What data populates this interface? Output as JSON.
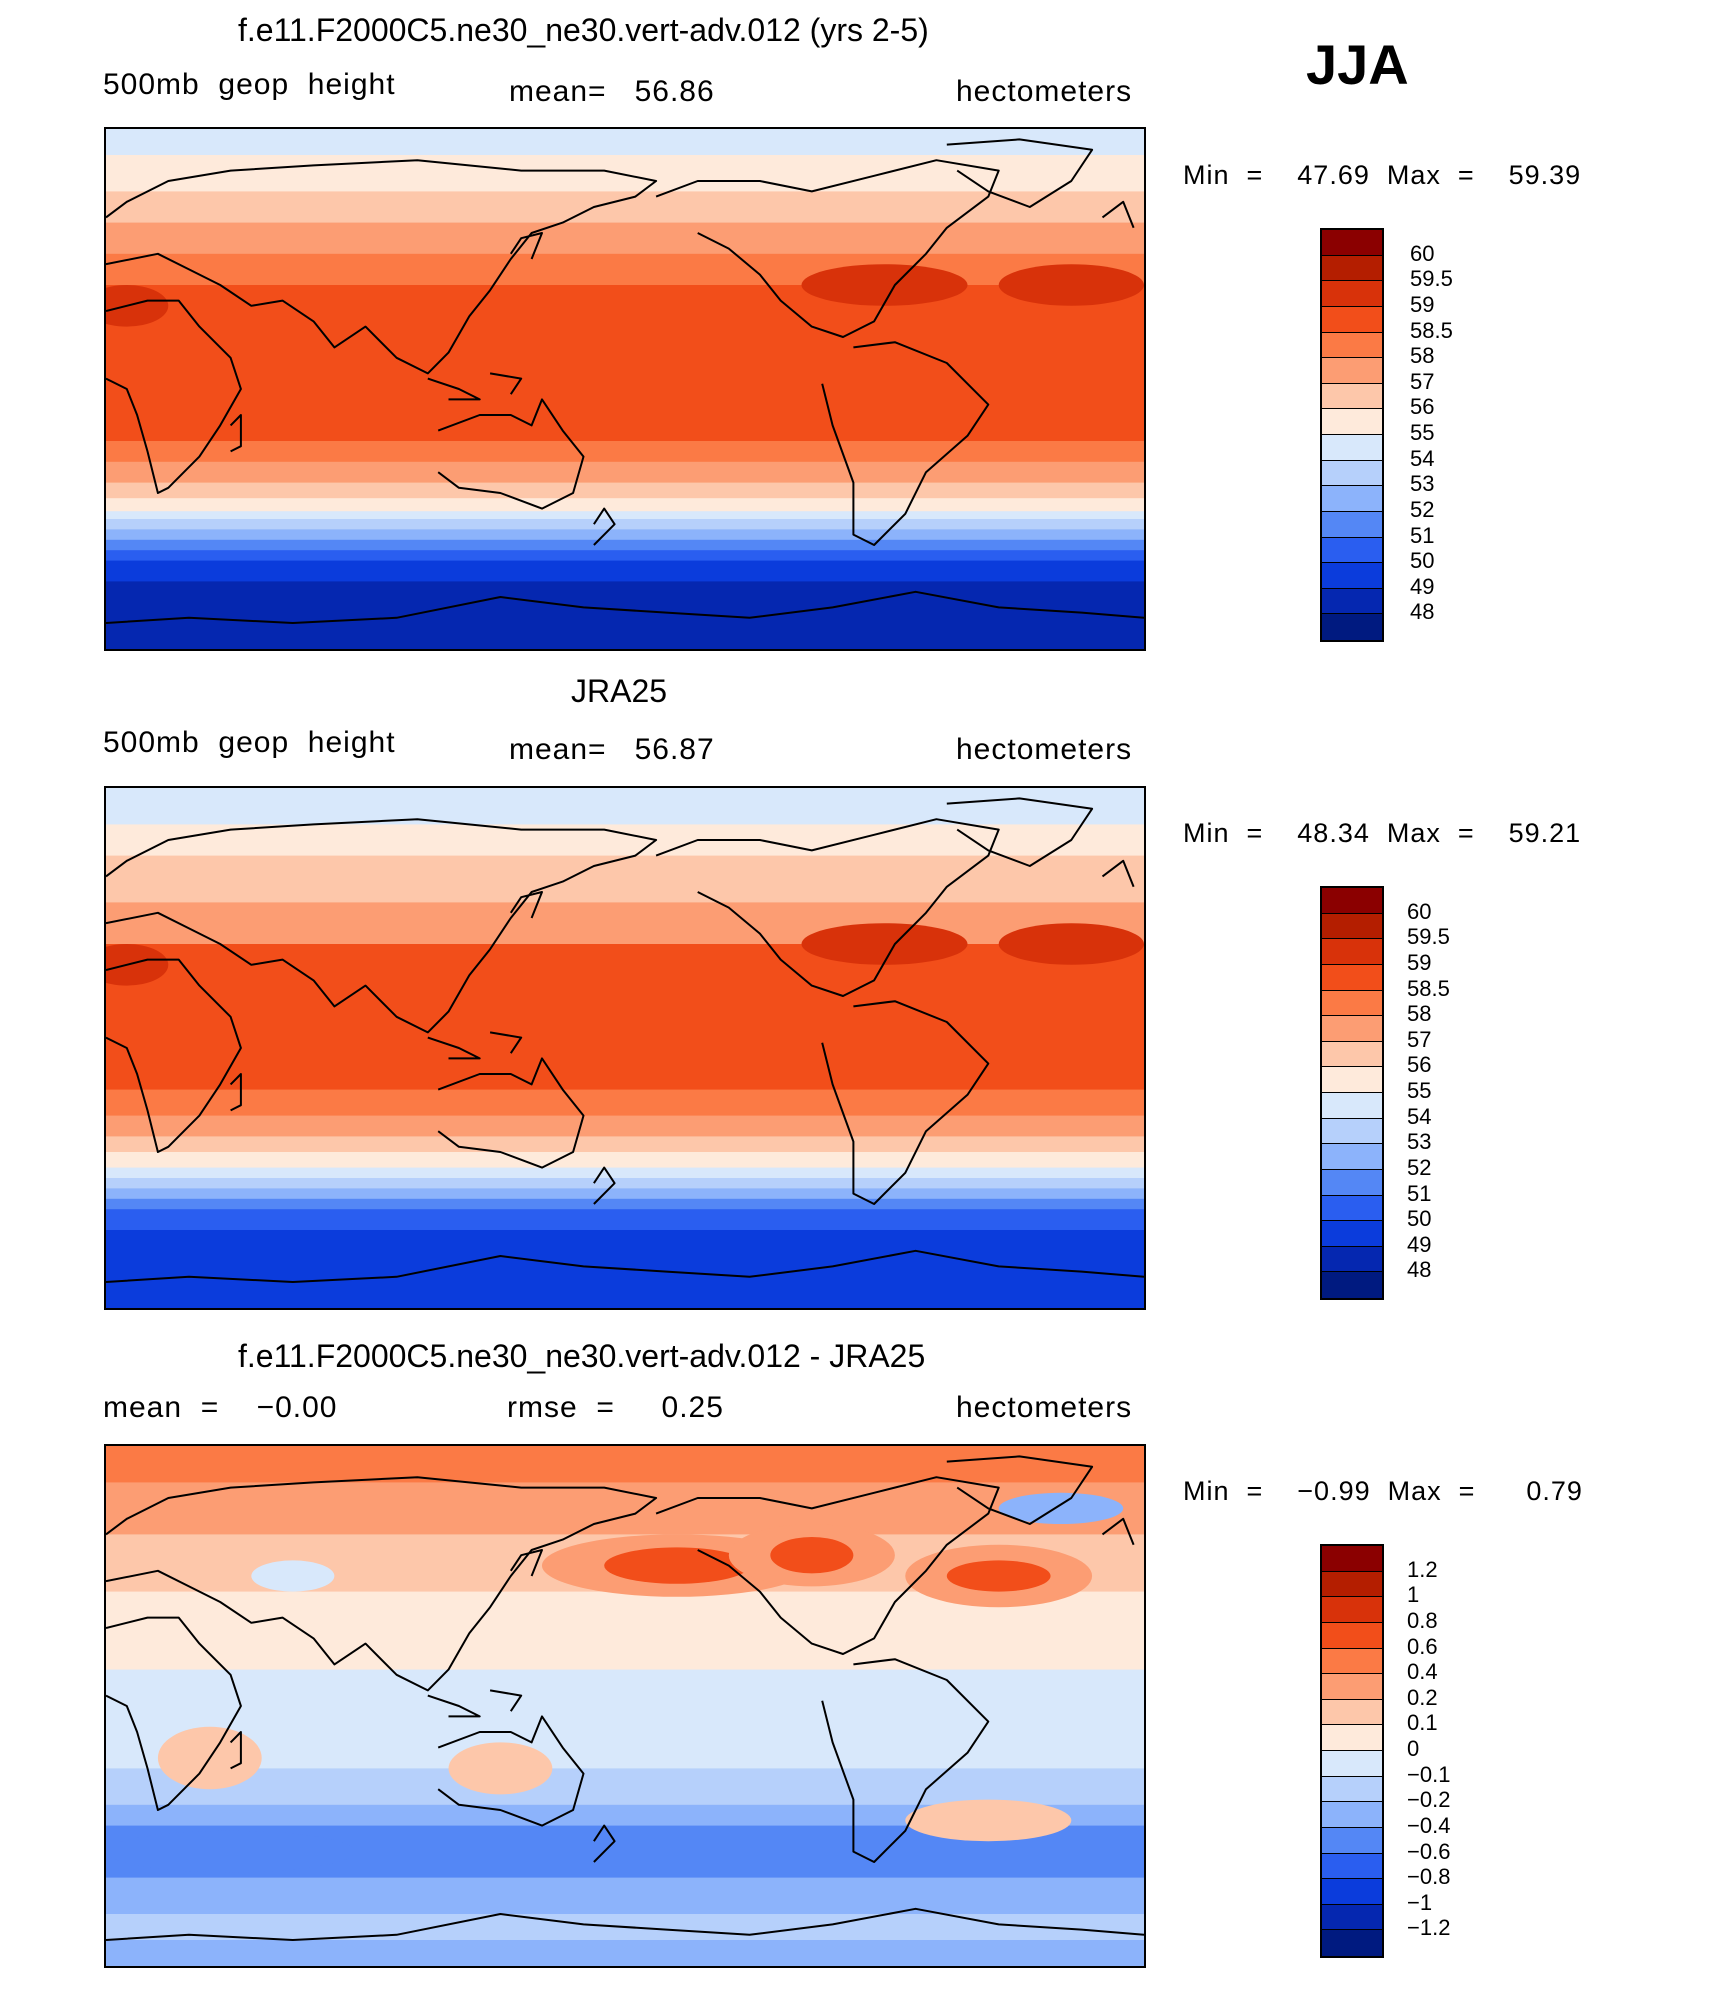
{
  "figure": {
    "season": "JJA"
  },
  "chart_data": [
    {
      "type": "heatmap",
      "title": "f.e11.F2000C5.ne30_ne30.vert-adv.012 (yrs 2-5)",
      "left_label": "500mb  geop  height",
      "center_label": "mean=   56.86",
      "right_label": "hectometers",
      "min_label": "Min  =    47.69  Max  =    59.39",
      "min": 47.69,
      "max": 59.39,
      "mean": 56.86,
      "levels": [
        "60",
        "59.5",
        "59",
        "58.5",
        "58",
        "57",
        "56",
        "55",
        "54",
        "53",
        "52",
        "51",
        "50",
        "49",
        "48"
      ],
      "colors": [
        "#8b0000",
        "#b41e00",
        "#d8320a",
        "#f24e1a",
        "#fb7a45",
        "#fc9d73",
        "#fdc7aa",
        "#feeadb",
        "#d8e8fb",
        "#b6d0fb",
        "#8cb3fb",
        "#5487f5",
        "#2a5ef0",
        "#0b3cdc",
        "#0527b0",
        "#001a80"
      ],
      "zonal_bands": [
        [
          0.0,
          "#d8e8fb"
        ],
        [
          0.05,
          "#feeadb"
        ],
        [
          0.12,
          "#fdc7aa"
        ],
        [
          0.18,
          "#fc9d73"
        ],
        [
          0.24,
          "#fb7a45"
        ],
        [
          0.3,
          "#f24e1a"
        ],
        [
          0.6,
          "#fb7a45"
        ],
        [
          0.64,
          "#fc9d73"
        ],
        [
          0.68,
          "#fdc7aa"
        ],
        [
          0.71,
          "#feeadb"
        ],
        [
          0.735,
          "#d8e8fb"
        ],
        [
          0.75,
          "#b6d0fb"
        ],
        [
          0.77,
          "#8cb3fb"
        ],
        [
          0.79,
          "#5487f5"
        ],
        [
          0.81,
          "#2a5ef0"
        ],
        [
          0.83,
          "#0b3cdc"
        ],
        [
          0.87,
          "#0527b0"
        ],
        [
          1.0,
          "#0527b0"
        ]
      ]
    },
    {
      "type": "heatmap",
      "title": "JRA25",
      "left_label": "500mb  geop  height",
      "center_label": "mean=   56.87",
      "right_label": "hectometers",
      "min_label": "Min  =    48.34  Max  =    59.21",
      "min": 48.34,
      "max": 59.21,
      "mean": 56.87,
      "levels": [
        "60",
        "59.5",
        "59",
        "58.5",
        "58",
        "57",
        "56",
        "55",
        "54",
        "53",
        "52",
        "51",
        "50",
        "49",
        "48"
      ],
      "colors": [
        "#8b0000",
        "#b41e00",
        "#d8320a",
        "#f24e1a",
        "#fb7a45",
        "#fc9d73",
        "#fdc7aa",
        "#feeadb",
        "#d8e8fb",
        "#b6d0fb",
        "#8cb3fb",
        "#5487f5",
        "#2a5ef0",
        "#0b3cdc",
        "#0527b0",
        "#001a80"
      ],
      "zonal_bands": [
        [
          0.0,
          "#d8e8fb"
        ],
        [
          0.07,
          "#feeadb"
        ],
        [
          0.13,
          "#fdc7aa"
        ],
        [
          0.22,
          "#fc9d73"
        ],
        [
          0.3,
          "#f24e1a"
        ],
        [
          0.58,
          "#fb7a45"
        ],
        [
          0.63,
          "#fc9d73"
        ],
        [
          0.67,
          "#fdc7aa"
        ],
        [
          0.7,
          "#feeadb"
        ],
        [
          0.73,
          "#d8e8fb"
        ],
        [
          0.75,
          "#b6d0fb"
        ],
        [
          0.77,
          "#8cb3fb"
        ],
        [
          0.79,
          "#5487f5"
        ],
        [
          0.81,
          "#2a5ef0"
        ],
        [
          0.85,
          "#0b3cdc"
        ],
        [
          1.0,
          "#0b3cdc"
        ]
      ]
    },
    {
      "type": "heatmap",
      "title": "f.e11.F2000C5.ne30_ne30.vert-adv.012 - JRA25",
      "left_label": "mean  =    −0.00",
      "center_label": "rmse  =     0.25",
      "right_label": "hectometers",
      "min_label": "Min  =    −0.99  Max  =      0.79",
      "min": -0.99,
      "max": 0.79,
      "mean": -0.0,
      "rmse": 0.25,
      "levels": [
        "1.2",
        "1",
        "0.8",
        "0.6",
        "0.4",
        "0.2",
        "0.1",
        "0",
        "−0.1",
        "−0.2",
        "−0.4",
        "−0.6",
        "−0.8",
        "−1",
        "−1.2"
      ],
      "colors": [
        "#8b0000",
        "#b41e00",
        "#d8320a",
        "#f24e1a",
        "#fb7a45",
        "#fc9d73",
        "#fdc7aa",
        "#feeadb",
        "#d8e8fb",
        "#b6d0fb",
        "#8cb3fb",
        "#5487f5",
        "#2a5ef0",
        "#0b3cdc",
        "#0527b0",
        "#001a80"
      ],
      "zonal_bands": [
        [
          0.0,
          "#fb7a45"
        ],
        [
          0.07,
          "#fc9d73"
        ],
        [
          0.17,
          "#fdc7aa"
        ],
        [
          0.28,
          "#feeadb"
        ],
        [
          0.43,
          "#d8e8fb"
        ],
        [
          0.62,
          "#b6d0fb"
        ],
        [
          0.69,
          "#8cb3fb"
        ],
        [
          0.73,
          "#5487f5"
        ],
        [
          0.83,
          "#8cb3fb"
        ],
        [
          0.9,
          "#b6d0fb"
        ],
        [
          0.95,
          "#8cb3fb"
        ],
        [
          1.0,
          "#8cb3fb"
        ]
      ]
    }
  ]
}
